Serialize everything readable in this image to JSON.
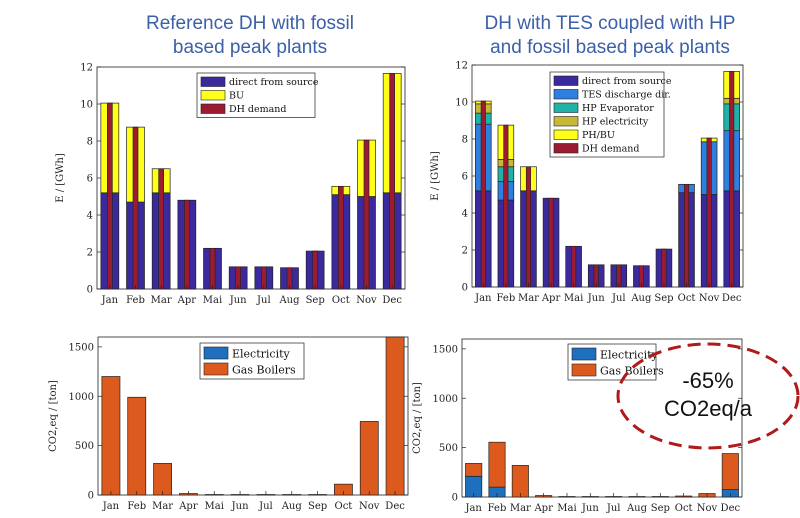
{
  "titles": {
    "left_line1": "Reference DH with fossil",
    "left_line2": "based peak plants",
    "right_line1": "DH with TES coupled with HP",
    "right_line2": "and fossil based peak plants"
  },
  "annotation": {
    "line1": "-65%",
    "line2": "CO2eq/a",
    "color": "#b01a1a"
  },
  "chart_data": [
    {
      "type": "bar",
      "id": "energy-ref",
      "title": "Reference DH with fossil based peak plants",
      "stacked": true,
      "ylabel": "E / [GWh]",
      "ylim": [
        0,
        12
      ],
      "yticks": [
        0,
        2,
        4,
        6,
        8,
        10,
        12
      ],
      "categories": [
        "Jan",
        "Feb",
        "Mar",
        "Apr",
        "Mai",
        "Jun",
        "Jul",
        "Aug",
        "Sep",
        "Oct",
        "Nov",
        "Dec"
      ],
      "series": [
        {
          "name": "direct from source",
          "color": "#3a2a9e",
          "values": [
            5.2,
            4.7,
            5.2,
            4.8,
            2.2,
            1.2,
            1.2,
            1.15,
            2.05,
            5.1,
            5.0,
            5.2
          ]
        },
        {
          "name": "BU",
          "color": "#ffff1a",
          "values": [
            4.85,
            4.05,
            1.3,
            0,
            0,
            0,
            0,
            0,
            0,
            0.45,
            3.05,
            6.45
          ]
        }
      ],
      "demand": {
        "name": "DH demand",
        "color": "#9b1b30",
        "values": [
          10.05,
          8.75,
          6.5,
          4.8,
          2.2,
          1.2,
          1.2,
          1.15,
          2.05,
          5.55,
          8.05,
          11.65
        ]
      }
    },
    {
      "type": "bar",
      "id": "energy-tes",
      "title": "DH with TES coupled with HP and fossil based peak plants",
      "stacked": true,
      "ylabel": "E / [GWh]",
      "ylim": [
        0,
        12
      ],
      "yticks": [
        0,
        2,
        4,
        6,
        8,
        10,
        12
      ],
      "categories": [
        "Jan",
        "Feb",
        "Mar",
        "Apr",
        "Mai",
        "Jun",
        "Jul",
        "Aug",
        "Sep",
        "Oct",
        "Nov",
        "Dec"
      ],
      "series": [
        {
          "name": "direct from source",
          "color": "#3a2a9e",
          "values": [
            5.2,
            4.7,
            5.2,
            4.8,
            2.2,
            1.2,
            1.2,
            1.15,
            2.05,
            5.1,
            5.0,
            5.2
          ]
        },
        {
          "name": "TES discharge dir.",
          "color": "#2f7fe0",
          "values": [
            3.6,
            1.0,
            0,
            0,
            0,
            0,
            0,
            0,
            0,
            0.45,
            2.85,
            3.25
          ]
        },
        {
          "name": "HP Evaporator",
          "color": "#1fb3a8",
          "values": [
            0.6,
            0.8,
            0,
            0,
            0,
            0,
            0,
            0,
            0,
            0,
            0,
            1.45
          ]
        },
        {
          "name": "HP electricity",
          "color": "#c8b836",
          "values": [
            0.5,
            0.4,
            0,
            0,
            0,
            0,
            0,
            0,
            0,
            0,
            0,
            0.3
          ]
        },
        {
          "name": "PH/BU",
          "color": "#ffff1a",
          "values": [
            0.15,
            1.85,
            1.3,
            0,
            0,
            0,
            0,
            0,
            0,
            0,
            0.2,
            1.45
          ]
        }
      ],
      "demand": {
        "name": "DH demand",
        "color": "#9b1b30",
        "values": [
          10.05,
          8.75,
          6.5,
          4.8,
          2.2,
          1.2,
          1.2,
          1.15,
          2.05,
          5.55,
          8.05,
          11.65
        ]
      }
    },
    {
      "type": "bar",
      "id": "co2-ref",
      "stacked": true,
      "ylabel": "CO2,eq / [ton]",
      "ylim": [
        0,
        1600
      ],
      "yticks": [
        0,
        500,
        1000,
        1500
      ],
      "categories": [
        "Jan",
        "Feb",
        "Mar",
        "Apr",
        "Mai",
        "Jun",
        "Jul",
        "Aug",
        "Sep",
        "Oct",
        "Nov",
        "Dec"
      ],
      "series": [
        {
          "name": "Electricity",
          "color": "#1f6fbf",
          "values": [
            0,
            0,
            0,
            0,
            0,
            0,
            0,
            0,
            0,
            0,
            0,
            0
          ]
        },
        {
          "name": "Gas Boilers",
          "color": "#dd5a1e",
          "values": [
            1200,
            990,
            320,
            15,
            5,
            5,
            5,
            5,
            5,
            110,
            745,
            1600
          ]
        }
      ]
    },
    {
      "type": "bar",
      "id": "co2-tes",
      "stacked": true,
      "ylabel": "CO2,eq / [ton]",
      "ylim": [
        0,
        1600
      ],
      "yticks": [
        0,
        500,
        1000,
        1500
      ],
      "categories": [
        "Jan",
        "Feb",
        "Mar",
        "Apr",
        "Mai",
        "Jun",
        "Jul",
        "Aug",
        "Sep",
        "Oct",
        "Nov",
        "Dec"
      ],
      "series": [
        {
          "name": "Electricity",
          "color": "#1f6fbf",
          "values": [
            210,
            100,
            0,
            0,
            0,
            0,
            0,
            0,
            0,
            0,
            0,
            75
          ]
        },
        {
          "name": "Gas Boilers",
          "color": "#dd5a1e",
          "values": [
            130,
            455,
            320,
            15,
            5,
            5,
            5,
            5,
            5,
            10,
            35,
            365
          ]
        }
      ]
    }
  ]
}
